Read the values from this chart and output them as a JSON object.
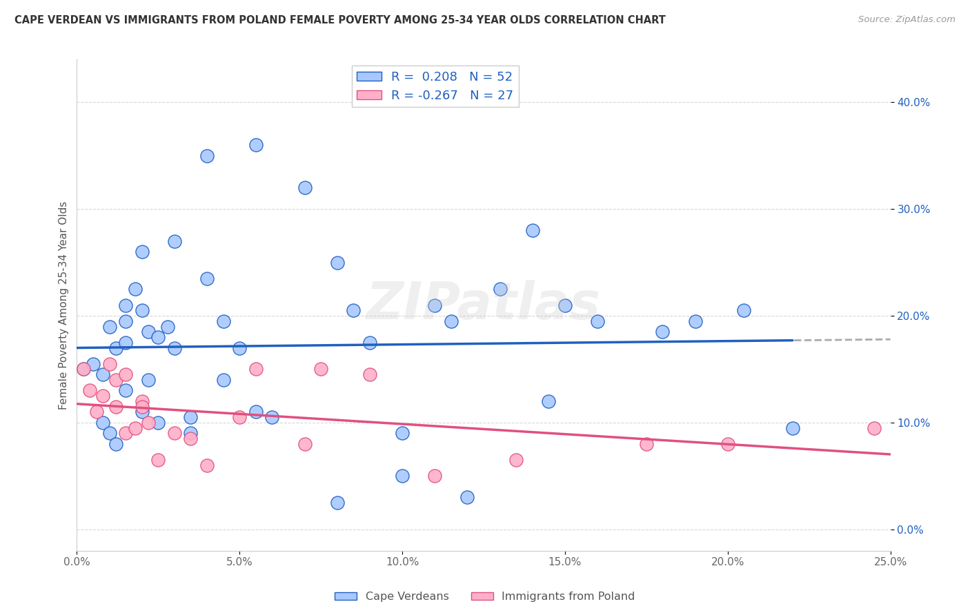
{
  "title": "CAPE VERDEAN VS IMMIGRANTS FROM POLAND FEMALE POVERTY AMONG 25-34 YEAR OLDS CORRELATION CHART",
  "source": "Source: ZipAtlas.com",
  "ylabel": "Female Poverty Among 25-34 Year Olds",
  "xlabel_vals": [
    0.0,
    5.0,
    10.0,
    15.0,
    20.0,
    25.0
  ],
  "ylabel_vals": [
    0.0,
    10.0,
    20.0,
    30.0,
    40.0
  ],
  "xlim": [
    0.0,
    25.0
  ],
  "ylim": [
    -2.0,
    44.0
  ],
  "legend1_label": "Cape Verdeans",
  "legend2_label": "Immigrants from Poland",
  "R1": 0.208,
  "N1": 52,
  "R2": -0.267,
  "N2": 27,
  "color_blue": "#A8C8FF",
  "color_pink": "#FFB0C8",
  "line_blue": "#2060C0",
  "line_pink": "#E05080",
  "dash_color": "#AAAAAA",
  "watermark": "ZIPatlas",
  "cape_verdean_x": [
    0.2,
    0.5,
    0.8,
    0.8,
    1.0,
    1.0,
    1.2,
    1.2,
    1.5,
    1.5,
    1.5,
    1.5,
    1.8,
    2.0,
    2.0,
    2.0,
    2.2,
    2.2,
    2.5,
    2.5,
    2.8,
    3.0,
    3.0,
    3.5,
    3.5,
    4.0,
    4.0,
    4.5,
    4.5,
    5.0,
    5.5,
    5.5,
    6.0,
    7.0,
    8.0,
    8.0,
    8.5,
    9.0,
    10.0,
    10.0,
    11.0,
    11.5,
    12.0,
    13.0,
    14.0,
    14.5,
    15.0,
    16.0,
    18.0,
    19.0,
    20.5,
    22.0
  ],
  "cape_verdean_y": [
    15.0,
    15.5,
    14.5,
    10.0,
    9.0,
    19.0,
    8.0,
    17.0,
    17.5,
    21.0,
    19.5,
    13.0,
    22.5,
    11.0,
    20.5,
    26.0,
    18.5,
    14.0,
    18.0,
    10.0,
    19.0,
    17.0,
    27.0,
    9.0,
    10.5,
    23.5,
    35.0,
    14.0,
    19.5,
    17.0,
    11.0,
    36.0,
    10.5,
    32.0,
    25.0,
    2.5,
    20.5,
    17.5,
    9.0,
    5.0,
    21.0,
    19.5,
    3.0,
    22.5,
    28.0,
    12.0,
    21.0,
    19.5,
    18.5,
    19.5,
    20.5,
    9.5
  ],
  "poland_x": [
    0.2,
    0.4,
    0.6,
    0.8,
    1.0,
    1.2,
    1.2,
    1.5,
    1.5,
    1.8,
    2.0,
    2.0,
    2.2,
    2.5,
    3.0,
    3.5,
    4.0,
    5.0,
    5.5,
    7.0,
    7.5,
    9.0,
    11.0,
    13.5,
    17.5,
    20.0,
    24.5
  ],
  "poland_y": [
    15.0,
    13.0,
    11.0,
    12.5,
    15.5,
    14.0,
    11.5,
    9.0,
    14.5,
    9.5,
    12.0,
    11.5,
    10.0,
    6.5,
    9.0,
    8.5,
    6.0,
    10.5,
    15.0,
    8.0,
    15.0,
    14.5,
    5.0,
    6.5,
    8.0,
    8.0,
    9.5
  ]
}
